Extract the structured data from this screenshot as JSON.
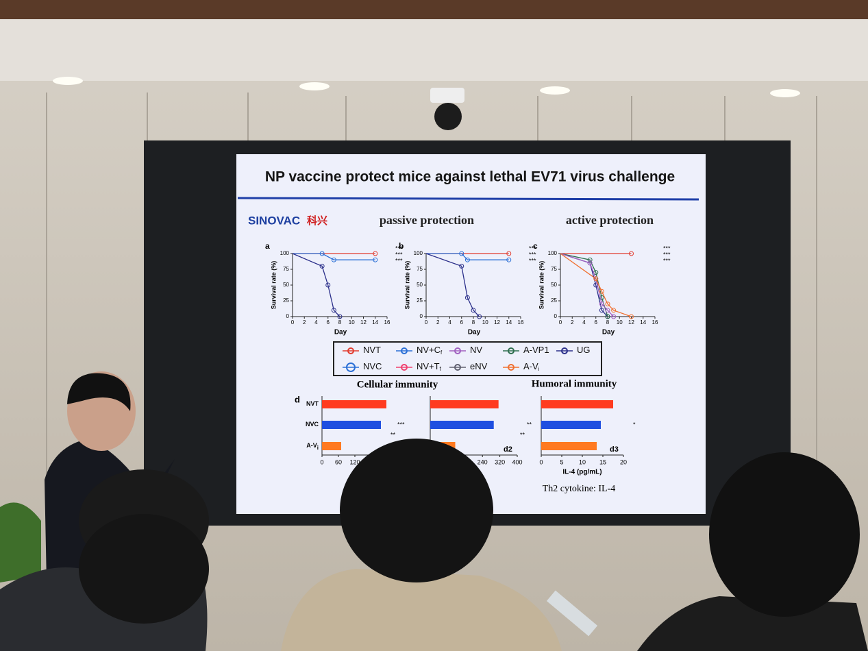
{
  "slide": {
    "title": "NP vaccine protect mice against lethal EV71 virus challenge",
    "logo": "SINOVAC",
    "logo_cn": "科兴",
    "passive": "passive protection",
    "active": "active protection"
  },
  "survival": {
    "y_label": "Survival rate (%)",
    "x_label": "Day",
    "xlim": [
      0,
      16
    ],
    "ylim": [
      0,
      100
    ],
    "xticks": [
      0,
      2,
      4,
      6,
      8,
      10,
      12,
      14,
      16
    ],
    "yticks": [
      0,
      25,
      50,
      75,
      100
    ],
    "panels": [
      {
        "label": "a",
        "stars": [
          "***",
          "***",
          "***"
        ],
        "series": [
          {
            "name": "NVT",
            "color": "#e23b2e",
            "x": [
              0,
              14
            ],
            "values": [
              100,
              100
            ]
          },
          {
            "name": "NVC",
            "color": "#2a6fd6",
            "x": [
              0,
              5,
              7,
              14
            ],
            "values": [
              100,
              100,
              90,
              90
            ]
          },
          {
            "name": "UG",
            "color": "#2b2f8a",
            "x": [
              0,
              5,
              6,
              7,
              8
            ],
            "values": [
              100,
              80,
              50,
              10,
              0
            ]
          }
        ]
      },
      {
        "label": "b",
        "stars": [
          "***",
          "***",
          "***"
        ],
        "series": [
          {
            "name": "NVT",
            "color": "#e23b2e",
            "x": [
              0,
              14
            ],
            "values": [
              100,
              100
            ]
          },
          {
            "name": "NVC",
            "color": "#2a6fd6",
            "x": [
              0,
              6,
              7,
              14
            ],
            "values": [
              100,
              100,
              90,
              90
            ]
          },
          {
            "name": "UG",
            "color": "#2b2f8a",
            "x": [
              0,
              6,
              7,
              8,
              9
            ],
            "values": [
              100,
              80,
              30,
              10,
              0
            ]
          }
        ]
      },
      {
        "label": "c",
        "stars": [
          "***",
          "***",
          "***"
        ],
        "series": [
          {
            "name": "NVT",
            "color": "#e23b2e",
            "x": [
              0,
              12
            ],
            "values": [
              100,
              100
            ]
          },
          {
            "name": "UG",
            "color": "#2b2f8a",
            "x": [
              0,
              5,
              6,
              7,
              8
            ],
            "values": [
              100,
              85,
              50,
              10,
              0
            ]
          },
          {
            "name": "A-VP1",
            "color": "#2f6f4f",
            "x": [
              0,
              5,
              6,
              7,
              8
            ],
            "values": [
              100,
              90,
              70,
              30,
              0
            ]
          },
          {
            "name": "NV",
            "color": "#a060c0",
            "x": [
              0,
              5,
              6,
              7,
              8,
              9
            ],
            "values": [
              100,
              85,
              60,
              20,
              10,
              0
            ]
          },
          {
            "name": "A-Vi",
            "color": "#f07030",
            "x": [
              0,
              6,
              7,
              8,
              9,
              12
            ],
            "values": [
              100,
              60,
              40,
              20,
              10,
              0
            ]
          }
        ]
      }
    ]
  },
  "legend": [
    {
      "name": "NVT",
      "color": "#e23b2e"
    },
    {
      "name": "NV+C",
      "sub": "f",
      "color": "#2a6fd6"
    },
    {
      "name": "NV",
      "color": "#a060c0"
    },
    {
      "name": "A-VP1",
      "color": "#2f6f4f"
    },
    {
      "name": "UG",
      "color": "#2b2f8a"
    },
    {
      "name": "NVC",
      "color": "#2a6fd6"
    },
    {
      "name": "NV+T",
      "sub": "f",
      "color": "#f04070"
    },
    {
      "name": "eNV",
      "color": "#606070"
    },
    {
      "name": "A-V",
      "sub": "i",
      "color": "#f07030"
    }
  ],
  "immunity": {
    "cellular": "Cellular immunity",
    "humoral": "Humoral immunity",
    "panel_label": "d",
    "groups": [
      {
        "name": "NVT"
      },
      {
        "name": "NVC"
      },
      {
        "name": "A-V",
        "sub": "i"
      }
    ],
    "colors": [
      "#ff3b1f",
      "#1f4fe0",
      "#ff7a20"
    ],
    "panels": [
      {
        "xlim": [
          0,
          240
        ],
        "xticks": [
          0,
          60,
          120
        ],
        "values": [
          235,
          215,
          70
        ],
        "stars": [
          "***",
          "**"
        ]
      },
      {
        "label": "d2",
        "xlim": [
          0,
          400
        ],
        "xticks": [
          240,
          320,
          400
        ],
        "values": [
          314,
          292,
          115
        ],
        "stars": [
          "**",
          "**"
        ]
      },
      {
        "label": "d3",
        "xlim": [
          0,
          20
        ],
        "xticks": [
          0,
          5,
          10,
          15,
          20
        ],
        "values": [
          17.5,
          14.5,
          13.5
        ],
        "x_label": "IL-4 (pg/mL)",
        "stars": [
          "*"
        ],
        "footer": "Th2 cytokine: IL-4"
      }
    ]
  }
}
